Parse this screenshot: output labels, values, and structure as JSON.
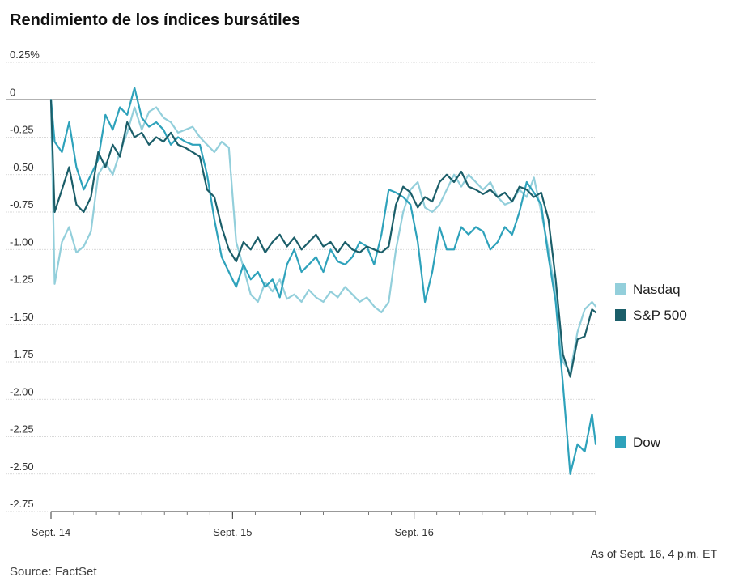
{
  "title": "Rendimiento de los índices bursátiles",
  "note": "As of Sept. 16, 4 p.m. ET",
  "source": "Source: FactSet",
  "colors": {
    "nasdaq": "#93cfdb",
    "sp500": "#1b5e69",
    "dow": "#2ea2bb",
    "grid": "#cccccc",
    "zero": "#333333"
  },
  "chart_data": {
    "type": "line",
    "title": "Rendimiento de los índices bursátiles",
    "xlabel": "",
    "ylabel": "",
    "yunit": "%",
    "ylim": [
      -2.75,
      0.25
    ],
    "yticks": [
      0.25,
      0,
      -0.25,
      -0.5,
      -0.75,
      -1.0,
      -1.25,
      -1.5,
      -1.75,
      -2.0,
      -2.25,
      -2.5,
      -2.75
    ],
    "ytick_labels": [
      "0.25%",
      "0",
      "-0.25",
      "-0.50",
      "-0.75",
      "-1.00",
      "-1.25",
      "-1.50",
      "-1.75",
      "-2.00",
      "-2.25",
      "-2.50",
      "-2.75"
    ],
    "xlim": [
      0,
      3
    ],
    "xticks": [
      0,
      1,
      2
    ],
    "xtick_labels": [
      "Sept. 14",
      "Sept. 15",
      "Sept. 16"
    ],
    "grid": true,
    "legend_placement": "right",
    "series": [
      {
        "name": "Nasdaq",
        "color": "#93cfdb",
        "x": [
          0,
          0.02,
          0.06,
          0.1,
          0.14,
          0.18,
          0.22,
          0.26,
          0.3,
          0.34,
          0.38,
          0.42,
          0.46,
          0.5,
          0.54,
          0.58,
          0.62,
          0.66,
          0.7,
          0.74,
          0.78,
          0.82,
          0.86,
          0.9,
          0.94,
          0.98,
          1.02,
          1.06,
          1.1,
          1.14,
          1.18,
          1.22,
          1.26,
          1.3,
          1.34,
          1.38,
          1.42,
          1.46,
          1.5,
          1.54,
          1.58,
          1.62,
          1.66,
          1.7,
          1.74,
          1.78,
          1.82,
          1.86,
          1.9,
          1.94,
          1.98,
          2.02,
          2.06,
          2.1,
          2.14,
          2.18,
          2.22,
          2.26,
          2.3,
          2.34,
          2.38,
          2.42,
          2.46,
          2.5,
          2.54,
          2.58,
          2.62,
          2.66,
          2.7,
          2.74,
          2.78,
          2.82,
          2.86,
          2.9,
          2.94,
          2.98,
          3.0
        ],
        "values": [
          0,
          -1.23,
          -0.95,
          -0.85,
          -1.02,
          -0.98,
          -0.88,
          -0.5,
          -0.42,
          -0.5,
          -0.35,
          -0.22,
          -0.05,
          -0.2,
          -0.08,
          -0.05,
          -0.12,
          -0.15,
          -0.22,
          -0.2,
          -0.18,
          -0.25,
          -0.3,
          -0.35,
          -0.28,
          -0.32,
          -0.95,
          -1.12,
          -1.3,
          -1.35,
          -1.22,
          -1.28,
          -1.2,
          -1.33,
          -1.3,
          -1.35,
          -1.27,
          -1.32,
          -1.35,
          -1.28,
          -1.32,
          -1.25,
          -1.3,
          -1.35,
          -1.32,
          -1.38,
          -1.42,
          -1.35,
          -1.0,
          -0.75,
          -0.6,
          -0.55,
          -0.72,
          -0.75,
          -0.7,
          -0.6,
          -0.5,
          -0.58,
          -0.5,
          -0.55,
          -0.6,
          -0.55,
          -0.65,
          -0.7,
          -0.68,
          -0.6,
          -0.65,
          -0.52,
          -0.75,
          -1.0,
          -1.3,
          -1.75,
          -1.82,
          -1.55,
          -1.4,
          -1.35,
          -1.38
        ]
      },
      {
        "name": "S&P 500",
        "color": "#1b5e69",
        "x": [
          0,
          0.02,
          0.06,
          0.1,
          0.14,
          0.18,
          0.22,
          0.26,
          0.3,
          0.34,
          0.38,
          0.42,
          0.46,
          0.5,
          0.54,
          0.58,
          0.62,
          0.66,
          0.7,
          0.74,
          0.78,
          0.82,
          0.86,
          0.9,
          0.94,
          0.98,
          1.02,
          1.06,
          1.1,
          1.14,
          1.18,
          1.22,
          1.26,
          1.3,
          1.34,
          1.38,
          1.42,
          1.46,
          1.5,
          1.54,
          1.58,
          1.62,
          1.66,
          1.7,
          1.74,
          1.78,
          1.82,
          1.86,
          1.9,
          1.94,
          1.98,
          2.02,
          2.06,
          2.1,
          2.14,
          2.18,
          2.22,
          2.26,
          2.3,
          2.34,
          2.38,
          2.42,
          2.46,
          2.5,
          2.54,
          2.58,
          2.62,
          2.66,
          2.7,
          2.74,
          2.78,
          2.82,
          2.86,
          2.9,
          2.94,
          2.98,
          3.0
        ],
        "values": [
          0,
          -0.75,
          -0.6,
          -0.45,
          -0.7,
          -0.75,
          -0.65,
          -0.35,
          -0.45,
          -0.3,
          -0.38,
          -0.15,
          -0.25,
          -0.22,
          -0.3,
          -0.25,
          -0.28,
          -0.22,
          -0.3,
          -0.32,
          -0.35,
          -0.38,
          -0.6,
          -0.65,
          -0.85,
          -1.0,
          -1.08,
          -0.95,
          -1.0,
          -0.92,
          -1.02,
          -0.95,
          -0.9,
          -0.98,
          -0.92,
          -1.0,
          -0.95,
          -0.9,
          -0.98,
          -0.95,
          -1.02,
          -0.95,
          -1.0,
          -1.02,
          -0.98,
          -1.0,
          -1.02,
          -0.98,
          -0.7,
          -0.58,
          -0.62,
          -0.72,
          -0.65,
          -0.68,
          -0.55,
          -0.5,
          -0.55,
          -0.48,
          -0.58,
          -0.6,
          -0.63,
          -0.6,
          -0.65,
          -0.62,
          -0.68,
          -0.58,
          -0.6,
          -0.65,
          -0.62,
          -0.8,
          -1.2,
          -1.7,
          -1.85,
          -1.6,
          -1.58,
          -1.4,
          -1.42
        ]
      },
      {
        "name": "Dow",
        "color": "#2ea2bb",
        "x": [
          0,
          0.02,
          0.06,
          0.1,
          0.14,
          0.18,
          0.22,
          0.26,
          0.3,
          0.34,
          0.38,
          0.42,
          0.46,
          0.5,
          0.54,
          0.58,
          0.62,
          0.66,
          0.7,
          0.74,
          0.78,
          0.82,
          0.86,
          0.9,
          0.94,
          0.98,
          1.02,
          1.06,
          1.1,
          1.14,
          1.18,
          1.22,
          1.26,
          1.3,
          1.34,
          1.38,
          1.42,
          1.46,
          1.5,
          1.54,
          1.58,
          1.62,
          1.66,
          1.7,
          1.74,
          1.78,
          1.82,
          1.86,
          1.9,
          1.94,
          1.98,
          2.02,
          2.06,
          2.1,
          2.14,
          2.18,
          2.22,
          2.26,
          2.3,
          2.34,
          2.38,
          2.42,
          2.46,
          2.5,
          2.54,
          2.58,
          2.62,
          2.66,
          2.7,
          2.74,
          2.78,
          2.82,
          2.86,
          2.9,
          2.94,
          2.98,
          3.0
        ],
        "values": [
          0,
          -0.28,
          -0.35,
          -0.15,
          -0.45,
          -0.6,
          -0.5,
          -0.4,
          -0.1,
          -0.2,
          -0.05,
          -0.1,
          0.08,
          -0.12,
          -0.18,
          -0.15,
          -0.2,
          -0.3,
          -0.25,
          -0.28,
          -0.3,
          -0.3,
          -0.5,
          -0.8,
          -1.05,
          -1.15,
          -1.25,
          -1.1,
          -1.2,
          -1.15,
          -1.25,
          -1.2,
          -1.32,
          -1.1,
          -1.0,
          -1.15,
          -1.1,
          -1.05,
          -1.15,
          -1.0,
          -1.08,
          -1.1,
          -1.05,
          -0.95,
          -0.98,
          -1.1,
          -0.9,
          -0.6,
          -0.62,
          -0.65,
          -0.7,
          -0.95,
          -1.35,
          -1.15,
          -0.85,
          -1.0,
          -1.0,
          -0.85,
          -0.9,
          -0.85,
          -0.88,
          -1.0,
          -0.95,
          -0.85,
          -0.9,
          -0.75,
          -0.55,
          -0.62,
          -0.7,
          -1.05,
          -1.35,
          -1.9,
          -2.5,
          -2.3,
          -2.35,
          -2.1,
          -2.3
        ]
      }
    ]
  }
}
